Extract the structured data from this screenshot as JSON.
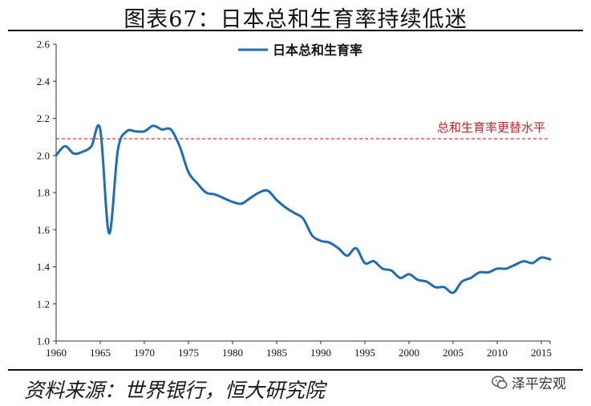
{
  "header": {
    "title": "图表67：日本总和生育率持续低迷"
  },
  "footer": {
    "source": "资料来源：世界银行，恒大研究院",
    "brand": "泽平宏观",
    "brand_icon": "wechat-icon"
  },
  "colors": {
    "series": "#1f6db2",
    "reference": "#c0282c",
    "axis": "#333333"
  },
  "chart_data": {
    "type": "line",
    "title": "图表67：日本总和生育率持续低迷",
    "xlabel": "",
    "ylabel": "",
    "xlim": [
      1960,
      2016
    ],
    "ylim": [
      1.0,
      2.6
    ],
    "x_ticks": [
      "1960",
      "1965",
      "1970",
      "1975",
      "1980",
      "1985",
      "1990",
      "1995",
      "2000",
      "2005",
      "2010",
      "2015"
    ],
    "y_ticks": [
      "1.0",
      "1.2",
      "1.4",
      "1.6",
      "1.8",
      "2.0",
      "2.2",
      "2.4",
      "2.6"
    ],
    "legend": {
      "position": "top-center",
      "label": "日本总和生育率"
    },
    "series": [
      {
        "name": "日本总和生育率",
        "x": [
          1960,
          1961,
          1962,
          1963,
          1964,
          1965,
          1966,
          1967,
          1968,
          1969,
          1970,
          1971,
          1972,
          1973,
          1974,
          1975,
          1976,
          1977,
          1978,
          1979,
          1980,
          1981,
          1982,
          1983,
          1984,
          1985,
          1986,
          1987,
          1988,
          1989,
          1990,
          1991,
          1992,
          1993,
          1994,
          1995,
          1996,
          1997,
          1998,
          1999,
          2000,
          2001,
          2002,
          2003,
          2004,
          2005,
          2006,
          2007,
          2008,
          2009,
          2010,
          2011,
          2012,
          2013,
          2014,
          2015,
          2016
        ],
        "values": [
          2.0,
          2.05,
          2.01,
          2.02,
          2.05,
          2.14,
          1.58,
          2.03,
          2.13,
          2.13,
          2.13,
          2.16,
          2.14,
          2.14,
          2.05,
          1.91,
          1.85,
          1.8,
          1.79,
          1.77,
          1.75,
          1.74,
          1.77,
          1.8,
          1.81,
          1.76,
          1.72,
          1.69,
          1.66,
          1.57,
          1.54,
          1.53,
          1.5,
          1.46,
          1.5,
          1.42,
          1.43,
          1.39,
          1.38,
          1.34,
          1.36,
          1.33,
          1.32,
          1.29,
          1.29,
          1.26,
          1.32,
          1.34,
          1.37,
          1.37,
          1.39,
          1.39,
          1.41,
          1.43,
          1.42,
          1.45,
          1.44
        ]
      }
    ],
    "reference_lines": [
      {
        "name": "总和生育率更替水平",
        "value": 2.09,
        "style": "dashed"
      }
    ]
  }
}
